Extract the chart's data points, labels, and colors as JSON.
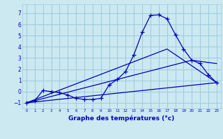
{
  "xlabel": "Graphe des températures (°c)",
  "bg_color": "#cce8f0",
  "grid_color": "#99cce0",
  "line_color": "#0000bb",
  "xlim": [
    -0.5,
    23.5
  ],
  "ylim": [
    -1.5,
    7.8
  ],
  "yticks": [
    -1,
    0,
    1,
    2,
    3,
    4,
    5,
    6,
    7
  ],
  "xticks": [
    0,
    1,
    2,
    3,
    4,
    5,
    6,
    7,
    8,
    9,
    10,
    11,
    12,
    13,
    14,
    15,
    16,
    17,
    18,
    19,
    20,
    21,
    22,
    23
  ],
  "line1_x": [
    0,
    1,
    2,
    3,
    4,
    5,
    6,
    7,
    8,
    9,
    10,
    11,
    12,
    13,
    14,
    15,
    16,
    17,
    18,
    19,
    20,
    21,
    22,
    23
  ],
  "line1_y": [
    -1.0,
    -0.8,
    0.1,
    0.0,
    -0.1,
    -0.3,
    -0.6,
    -0.7,
    -0.7,
    -0.6,
    0.6,
    1.1,
    1.8,
    3.3,
    5.3,
    6.8,
    6.85,
    6.5,
    5.1,
    3.8,
    2.8,
    2.5,
    1.5,
    0.8
  ],
  "line2_x": [
    0,
    23
  ],
  "line2_y": [
    -1.0,
    0.8
  ],
  "line3_x": [
    0,
    20,
    23
  ],
  "line3_y": [
    -1.0,
    2.8,
    2.5
  ],
  "line4_x": [
    0,
    17,
    23
  ],
  "line4_y": [
    -1.0,
    3.8,
    0.8
  ],
  "marker_size": 2.5,
  "line_width": 0.9,
  "xlabel_fontsize": 6.5,
  "tick_fontsize_x": 4.0,
  "tick_fontsize_y": 5.5
}
